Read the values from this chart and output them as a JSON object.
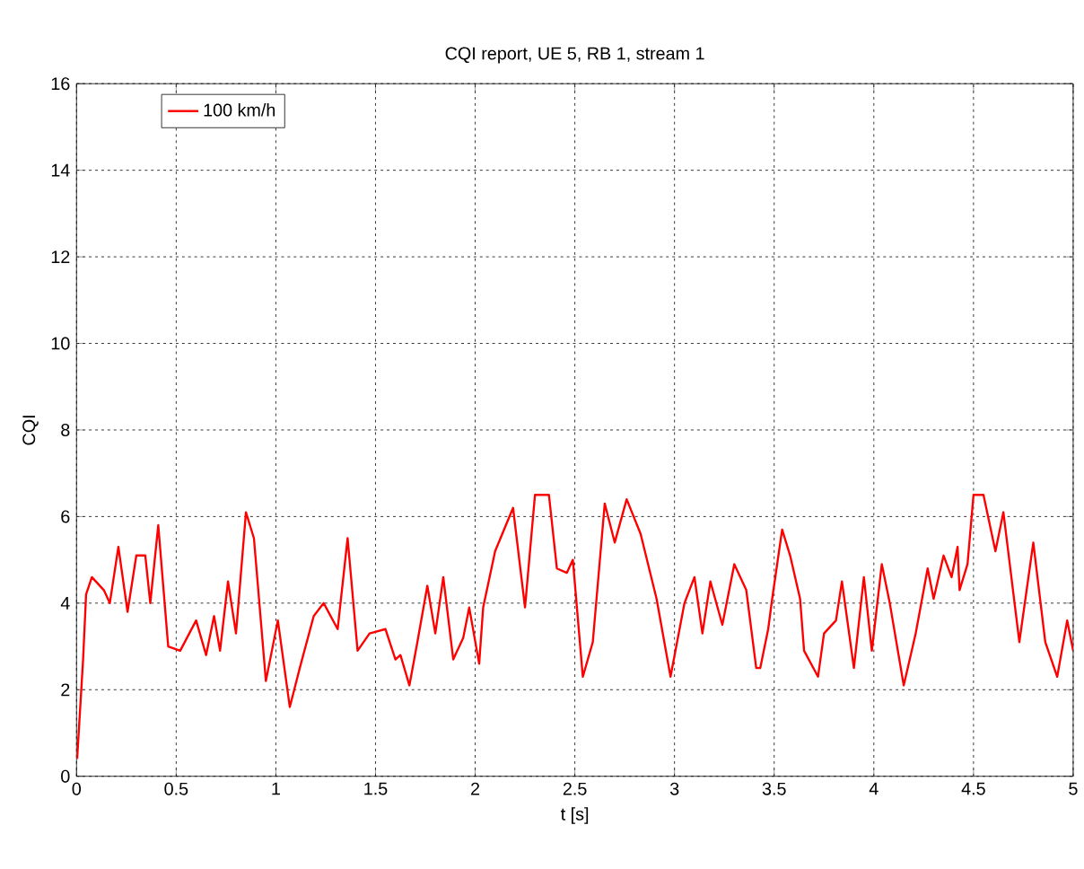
{
  "chart_data": {
    "type": "line",
    "title": "CQI report, UE 5, RB 1, stream 1",
    "xlabel": "t [s]",
    "ylabel": "CQI",
    "x": [
      0.003,
      0.033,
      0.048,
      0.077,
      0.137,
      0.167,
      0.21,
      0.256,
      0.3,
      0.345,
      0.37,
      0.41,
      0.46,
      0.52,
      0.6,
      0.65,
      0.69,
      0.72,
      0.76,
      0.8,
      0.85,
      0.89,
      0.95,
      1.01,
      1.07,
      1.12,
      1.19,
      1.24,
      1.31,
      1.36,
      1.41,
      1.47,
      1.55,
      1.6,
      1.625,
      1.67,
      1.71,
      1.76,
      1.8,
      1.84,
      1.89,
      1.94,
      1.97,
      2.02,
      2.04,
      2.1,
      2.19,
      2.25,
      2.3,
      2.37,
      2.41,
      2.46,
      2.49,
      2.54,
      2.59,
      2.65,
      2.7,
      2.76,
      2.83,
      2.91,
      2.98,
      3.05,
      3.1,
      3.14,
      3.18,
      3.24,
      3.3,
      3.36,
      3.41,
      3.43,
      3.47,
      3.49,
      3.54,
      3.58,
      3.63,
      3.65,
      3.72,
      3.75,
      3.81,
      3.84,
      3.9,
      3.95,
      3.99,
      4.04,
      4.08,
      4.15,
      4.21,
      4.27,
      4.3,
      4.35,
      4.39,
      4.42,
      4.43,
      4.47,
      4.5,
      4.55,
      4.61,
      4.65,
      4.73,
      4.8,
      4.86,
      4.92,
      4.97,
      5.0
    ],
    "series": [
      {
        "name": "100 km/h",
        "color": "#ff0000",
        "values": [
          0.4,
          2.7,
          4.2,
          4.6,
          4.3,
          4.0,
          5.3,
          3.8,
          5.1,
          5.1,
          4.0,
          5.8,
          3.0,
          2.9,
          3.6,
          2.8,
          3.7,
          2.9,
          4.5,
          3.3,
          6.1,
          5.5,
          2.2,
          3.6,
          1.6,
          2.5,
          3.7,
          4.0,
          3.4,
          5.5,
          2.9,
          3.3,
          3.4,
          2.7,
          2.8,
          2.1,
          3.1,
          4.4,
          3.3,
          4.6,
          2.7,
          3.2,
          3.9,
          2.6,
          3.9,
          5.2,
          6.2,
          3.9,
          6.5,
          6.5,
          4.8,
          4.7,
          5.0,
          2.3,
          3.1,
          6.3,
          5.4,
          6.4,
          5.6,
          4.1,
          2.3,
          4.0,
          4.6,
          3.3,
          4.5,
          3.5,
          4.9,
          4.3,
          2.5,
          2.5,
          3.4,
          4.1,
          5.7,
          5.1,
          4.1,
          2.9,
          2.3,
          3.3,
          3.6,
          4.5,
          2.5,
          4.6,
          2.9,
          4.9,
          4.0,
          2.1,
          3.3,
          4.8,
          4.1,
          5.1,
          4.6,
          5.3,
          4.3,
          4.9,
          6.5,
          6.5,
          5.2,
          6.1,
          3.1,
          5.4,
          3.1,
          2.3,
          3.6,
          2.9
        ]
      }
    ],
    "xlim": [
      0,
      5
    ],
    "ylim": [
      0,
      16
    ],
    "xticks": [
      0,
      0.5,
      1,
      1.5,
      2,
      2.5,
      3,
      3.5,
      4,
      4.5,
      5
    ],
    "yticks": [
      0,
      2,
      4,
      6,
      8,
      10,
      12,
      14,
      16
    ],
    "grid": true,
    "legend": "top left"
  }
}
